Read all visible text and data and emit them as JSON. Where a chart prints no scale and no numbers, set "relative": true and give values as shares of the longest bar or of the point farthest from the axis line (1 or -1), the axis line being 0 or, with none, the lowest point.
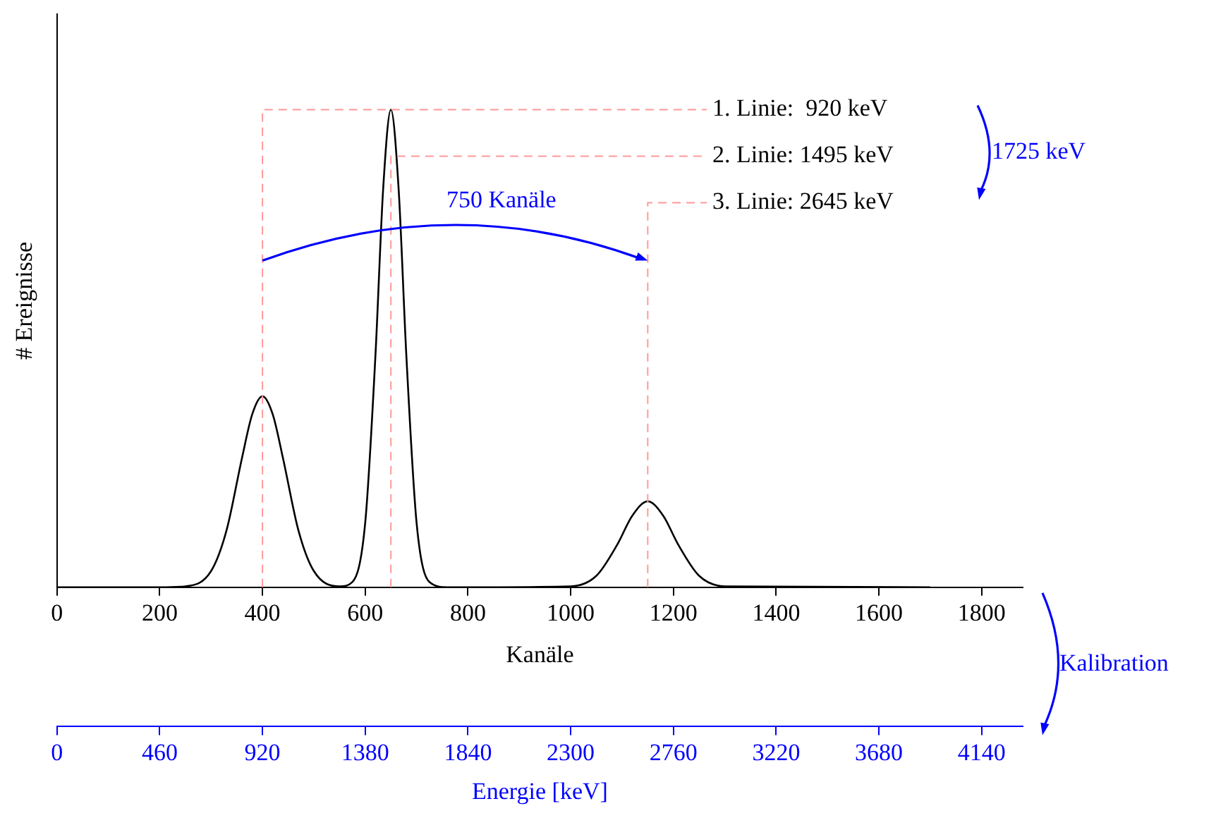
{
  "chart_data": {
    "type": "line",
    "relative": true,
    "xlabel": "Kanäle",
    "ylabel": "# Ereignisse",
    "x2label": "Energie [keV]",
    "xlim": [
      0,
      1880
    ],
    "xticks": [
      0,
      200,
      400,
      600,
      800,
      1000,
      1200,
      1400,
      1600,
      1800
    ],
    "x2lim": [
      0,
      4324
    ],
    "x2ticks": [
      0,
      460,
      920,
      1380,
      1840,
      2300,
      2760,
      3220,
      3680,
      4140
    ],
    "series": [
      {
        "color": "#000000",
        "x": [
          0,
          200,
          250,
          300,
          330,
          360,
          380,
          400,
          420,
          440,
          470,
          500,
          550,
          575,
          600,
          620,
          635,
          650,
          665,
          680,
          700,
          725,
          760,
          1000,
          1050,
          1090,
          1120,
          1150,
          1180,
          1210,
          1250,
          1300,
          1700
        ],
        "values": [
          0,
          0,
          0.002,
          0.034,
          0.119,
          0.27,
          0.362,
          0.4,
          0.362,
          0.27,
          0.119,
          0.034,
          0.002,
          0.011,
          0.135,
          0.487,
          0.835,
          1,
          0.835,
          0.487,
          0.135,
          0.011,
          0,
          0.002,
          0.024,
          0.088,
          0.15,
          0.18,
          0.15,
          0.088,
          0.024,
          0.002,
          0
        ]
      }
    ],
    "ref_lines": [
      {
        "axis": "x2",
        "value": 920,
        "label": "1. Linie:  920 keV",
        "color": "#ff9999",
        "line_style": "dashed"
      },
      {
        "axis": "x2",
        "value": 1495,
        "label": "2. Linie: 1495 keV",
        "color": "#ff9999",
        "line_style": "dashed"
      },
      {
        "axis": "x2",
        "value": 2645,
        "label": "3. Linie: 2645 keV",
        "color": "#ff9999",
        "line_style": "dashed"
      }
    ],
    "annotations": [
      "750 Kanäle",
      "1725 keV",
      "Kalibration"
    ],
    "marker": "none",
    "line_style": "solid",
    "grid": false,
    "legend": false
  }
}
